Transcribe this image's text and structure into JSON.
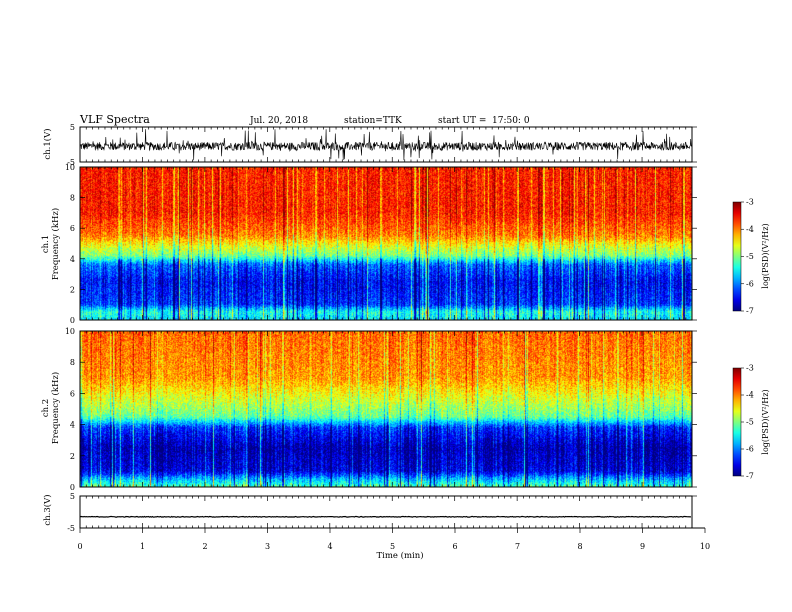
{
  "header": {
    "title": "VLF Spectra",
    "date": "Jul. 20, 2018",
    "station": "station=TTK",
    "start": "start UT =",
    "start_time": "17:50: 0"
  },
  "chart_data": [
    {
      "type": "line",
      "name": "ch1-waveform",
      "ylabel": "ch.1(V)",
      "ylim": [
        -5,
        5
      ],
      "yticks": [
        "5",
        "-5"
      ],
      "xlim": [
        0,
        10
      ],
      "baseline": -0.5,
      "noise": 1.2,
      "burst_top": 4.5
    },
    {
      "type": "heatmap",
      "name": "ch1-spectrogram",
      "ylabel_top": "ch.1",
      "ylabel": "Frequency (kHz)",
      "ylim": [
        0,
        10
      ],
      "yticks": [
        "0",
        "2",
        "4",
        "6",
        "8",
        "10"
      ],
      "xlim": [
        0,
        9.8
      ],
      "colorbar": {
        "label": "log(PSD)(V²/Hz)",
        "range": [
          -7,
          -3
        ],
        "ticks": [
          "-3",
          "-4",
          "-5",
          "-6",
          "-7"
        ]
      },
      "profile": [
        {
          "f": 0.0,
          "v": -5.6
        },
        {
          "f": 0.5,
          "v": -5.4
        },
        {
          "f": 1.0,
          "v": -6.3
        },
        {
          "f": 2.5,
          "v": -6.5
        },
        {
          "f": 3.6,
          "v": -6.1
        },
        {
          "f": 4.2,
          "v": -5.0
        },
        {
          "f": 4.8,
          "v": -4.6
        },
        {
          "f": 5.5,
          "v": -4.0
        },
        {
          "f": 7.0,
          "v": -3.6
        },
        {
          "f": 10.0,
          "v": -3.6
        }
      ]
    },
    {
      "type": "heatmap",
      "name": "ch2-spectrogram",
      "ylabel_top": "ch.2",
      "ylabel": "Frequency (kHz)",
      "ylim": [
        0,
        10
      ],
      "yticks": [
        "0",
        "2",
        "4",
        "6",
        "8",
        "10"
      ],
      "xlim": [
        0,
        9.8
      ],
      "colorbar": {
        "label": "log(PSD)(V²/Hz)",
        "range": [
          -7,
          -3
        ],
        "ticks": [
          "-3",
          "-4",
          "-5",
          "-6",
          "-7"
        ]
      },
      "profile": [
        {
          "f": 0.0,
          "v": -5.2
        },
        {
          "f": 0.5,
          "v": -5.8
        },
        {
          "f": 1.0,
          "v": -6.6
        },
        {
          "f": 2.5,
          "v": -6.8
        },
        {
          "f": 3.8,
          "v": -6.3
        },
        {
          "f": 4.5,
          "v": -5.1
        },
        {
          "f": 5.5,
          "v": -4.7
        },
        {
          "f": 7.0,
          "v": -4.1
        },
        {
          "f": 10.0,
          "v": -3.9
        }
      ]
    },
    {
      "type": "line",
      "name": "ch3-waveform",
      "ylabel": "ch.3(V)",
      "ylim": [
        -5,
        5
      ],
      "yticks": [
        "5",
        "-5"
      ],
      "xlim": [
        0,
        10
      ],
      "baseline": -1.5,
      "noise": 0.1
    }
  ],
  "x_axis": {
    "label": "Time (min)",
    "range": [
      0,
      10
    ],
    "ticks": [
      "0",
      "1",
      "2",
      "3",
      "4",
      "5",
      "6",
      "7",
      "8",
      "9",
      "10"
    ]
  }
}
